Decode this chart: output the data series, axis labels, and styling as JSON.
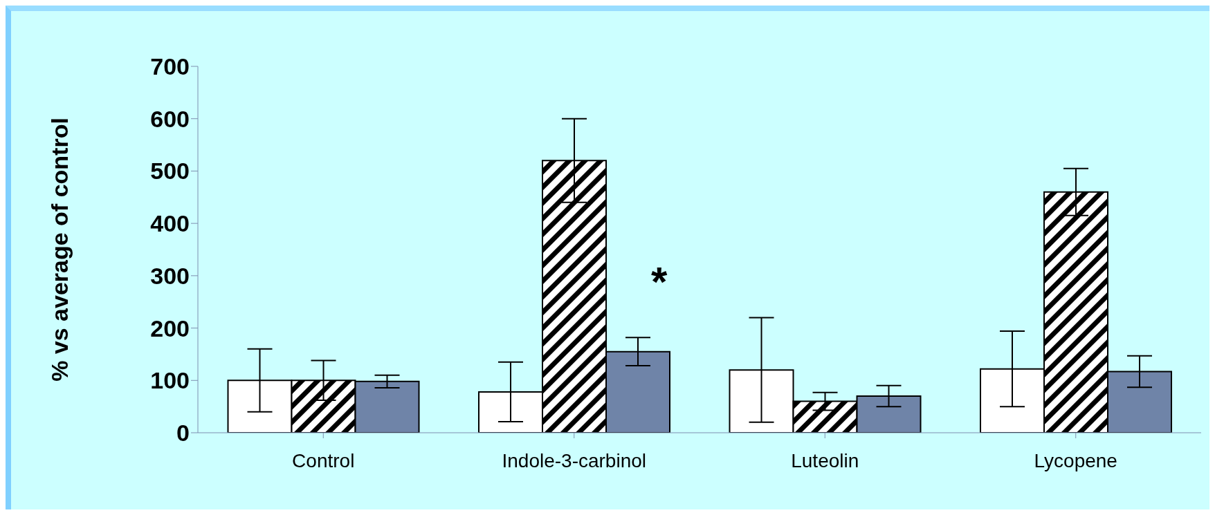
{
  "chart_data": {
    "type": "bar",
    "ylabel": "% vs average of control",
    "categories": [
      "Control",
      "Indole-3-carbinol",
      "Luteolin",
      "Lycopene"
    ],
    "series": [
      {
        "color": "#ffffff",
        "values": [
          100,
          78,
          120,
          122
        ],
        "errors": [
          60,
          57,
          100,
          72
        ]
      },
      {
        "color": "#000000",
        "values": [
          100,
          520,
          60,
          460
        ],
        "errors": [
          38,
          80,
          17,
          45
        ]
      },
      {
        "color": "#6f84a8",
        "values": [
          98,
          155,
          70,
          117
        ],
        "errors": [
          12,
          27,
          20,
          30
        ]
      }
    ],
    "ylim": [
      0,
      700
    ],
    "yticks": [
      0,
      100,
      200,
      300,
      400,
      500,
      600,
      700
    ],
    "grid": false,
    "legend": false,
    "annotations": [
      "*"
    ]
  }
}
